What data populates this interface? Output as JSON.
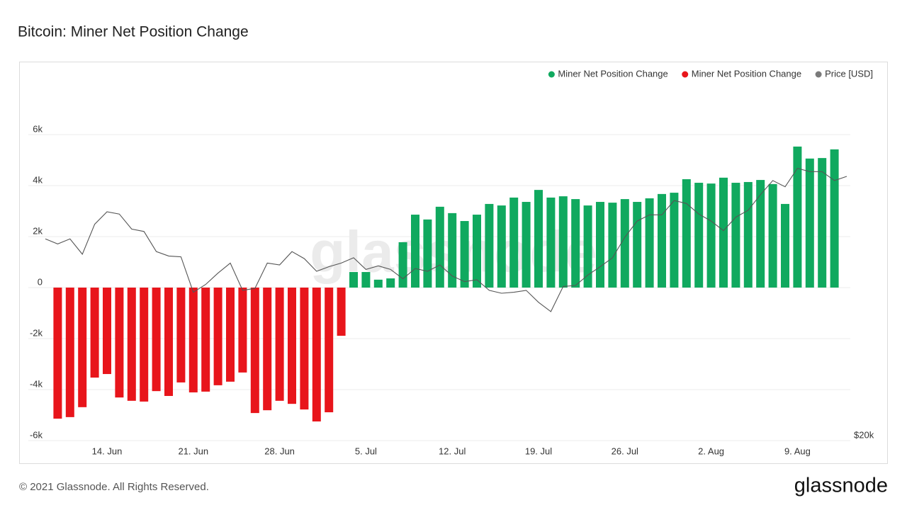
{
  "chart_data": {
    "type": "bar",
    "title": "Bitcoin: Miner Net Position Change",
    "watermark": "glassnode",
    "footer": "© 2021 Glassnode. All Rights Reserved.",
    "logo": "glassnode",
    "categories": [
      null,
      null,
      null,
      null,
      null,
      "14. Jun",
      null,
      null,
      null,
      null,
      null,
      null,
      "21. Jun",
      null,
      null,
      null,
      null,
      null,
      null,
      "28. Jun",
      null,
      null,
      null,
      null,
      null,
      null,
      "5. Jul",
      null,
      null,
      null,
      null,
      null,
      null,
      "12. Jul",
      null,
      null,
      null,
      null,
      null,
      null,
      "19. Jul",
      null,
      null,
      null,
      null,
      null,
      null,
      "26. Jul",
      null,
      null,
      null,
      null,
      null,
      null,
      "2. Aug",
      null,
      null,
      null,
      null,
      null,
      null,
      "9. Aug",
      null,
      null,
      null,
      null
    ],
    "series": [
      {
        "name": "Miner Net Position Change",
        "color": "#10a95f",
        "values": [
          null,
          null,
          null,
          null,
          null,
          null,
          null,
          null,
          null,
          null,
          null,
          null,
          null,
          null,
          null,
          null,
          null,
          null,
          null,
          null,
          null,
          null,
          null,
          null,
          null,
          610,
          610,
          310,
          360,
          1780,
          2860,
          2670,
          3170,
          2920,
          2610,
          2860,
          3280,
          3220,
          3530,
          3360,
          3830,
          3530,
          3580,
          3470,
          3220,
          3360,
          3330,
          3470,
          3360,
          3500,
          3670,
          3720,
          4250,
          4110,
          4080,
          4310,
          4110,
          4140,
          4220,
          4060,
          3280,
          5530,
          5060,
          5080,
          5420,
          null
        ]
      },
      {
        "name": "Miner Net Position Change",
        "color": "#e8151b",
        "values": [
          null,
          -5140,
          -5080,
          -4690,
          -3530,
          -3390,
          -4310,
          -4440,
          -4470,
          -4060,
          -4250,
          -3720,
          -4110,
          -4080,
          -3830,
          -3690,
          -3330,
          -4920,
          -4810,
          -4440,
          -4560,
          -4780,
          -5250,
          -4890,
          -1890,
          null,
          null,
          null,
          null,
          null,
          null,
          null,
          null,
          null,
          null,
          null,
          null,
          null,
          null,
          null,
          null,
          null,
          null,
          null,
          null,
          null,
          null,
          null,
          null,
          null,
          null,
          null,
          null,
          null,
          null,
          null,
          null,
          null,
          null,
          null,
          null,
          null,
          null,
          null,
          null,
          null
        ]
      },
      {
        "name": "Price [USD]",
        "color": "#7a7a7a",
        "type": "line",
        "axis": "y2",
        "values": [
          37900,
          37300,
          37900,
          36100,
          39700,
          41300,
          41000,
          39100,
          38800,
          36400,
          35900,
          35800,
          32000,
          32800,
          34000,
          35100,
          32200,
          32400,
          35100,
          34900,
          36400,
          35600,
          34200,
          34700,
          35100,
          35700,
          34400,
          34800,
          34400,
          33400,
          34500,
          34200,
          34900,
          33700,
          33100,
          33300,
          32200,
          31900,
          32000,
          32200,
          31000,
          30100,
          32600,
          32700,
          33800,
          34700,
          35700,
          38100,
          40100,
          40900,
          40900,
          42800,
          42400,
          41000,
          40100,
          38900,
          40600,
          41500,
          43600,
          45600,
          44700,
          47400,
          46900,
          46900,
          45600,
          46200
        ]
      }
    ],
    "ylim": [
      -6000,
      8000
    ],
    "yticks": [
      {
        "value": -6000,
        "label": "-6k"
      },
      {
        "value": -4000,
        "label": "-4k"
      },
      {
        "value": -2000,
        "label": "-2k"
      },
      0,
      {
        "value": 2000,
        "label": "2k"
      },
      {
        "value": 4000,
        "label": "4k"
      },
      {
        "value": 6000,
        "label": "6k"
      }
    ],
    "y2lim": [
      20000,
      62000
    ],
    "y2scale": "log",
    "y2ticks": [
      {
        "value": 20000,
        "label": "$20k"
      }
    ],
    "grid": true,
    "legend": "top-right"
  }
}
